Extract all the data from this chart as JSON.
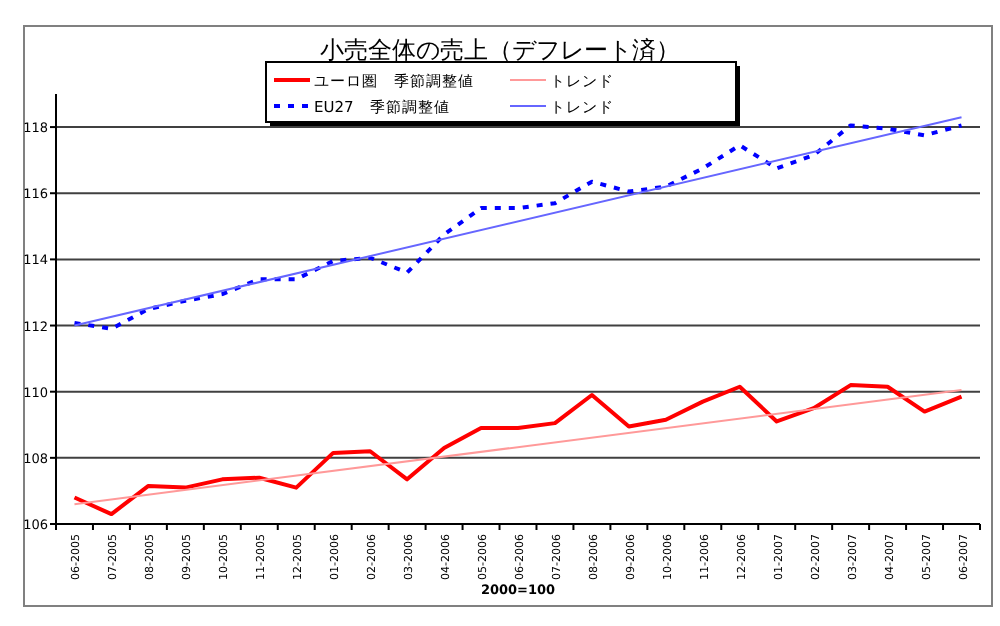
{
  "chart_data": {
    "type": "line",
    "title": "小売全体の売上（デフレート済）",
    "xlabel": "2000=100",
    "categories": [
      "06-2005",
      "07-2005",
      "08-2005",
      "09-2005",
      "10-2005",
      "11-2005",
      "12-2005",
      "01-2006",
      "02-2006",
      "03-2006",
      "04-2006",
      "05-2006",
      "06-2006",
      "07-2006",
      "08-2006",
      "09-2006",
      "10-2006",
      "11-2006",
      "12-2006",
      "01-2007",
      "02-2007",
      "03-2007",
      "04-2007",
      "05-2007",
      "06-2007"
    ],
    "series": [
      {
        "name": "ユーロ圏　季節調整値",
        "color": "#ff0000",
        "line_style": "solid",
        "values": [
          106.8,
          106.3,
          107.15,
          107.1,
          107.35,
          107.4,
          107.1,
          108.15,
          108.2,
          107.35,
          108.3,
          108.9,
          108.9,
          109.05,
          109.9,
          108.95,
          109.15,
          109.7,
          110.15,
          109.1,
          109.5,
          110.2,
          110.15,
          109.4,
          109.85
        ]
      },
      {
        "name": "EU27　季節調整値",
        "color": "#0000ff",
        "line_style": "dotted",
        "values": [
          112.08,
          111.9,
          112.5,
          112.75,
          112.95,
          113.4,
          113.4,
          113.95,
          114.05,
          113.6,
          114.75,
          115.55,
          115.55,
          115.7,
          116.35,
          116.05,
          116.2,
          116.75,
          117.45,
          116.75,
          117.15,
          118.05,
          117.95,
          117.75,
          118.05
        ]
      },
      {
        "name": "トレンド",
        "color": "#ff9999",
        "line_style": "solid",
        "x": [
          "06-2005",
          "06-2007"
        ],
        "values": [
          106.6,
          110.05
        ]
      },
      {
        "name": "トレンド",
        "color": "#6666ff",
        "line_style": "solid",
        "x": [
          "06-2005",
          "06-2007"
        ],
        "values": [
          112.0,
          118.3
        ]
      }
    ],
    "ylim": [
      106,
      119
    ],
    "yticks": [
      106,
      108,
      110,
      112,
      114,
      116,
      118
    ],
    "grid": "y",
    "legend": "top",
    "marker": "none"
  }
}
